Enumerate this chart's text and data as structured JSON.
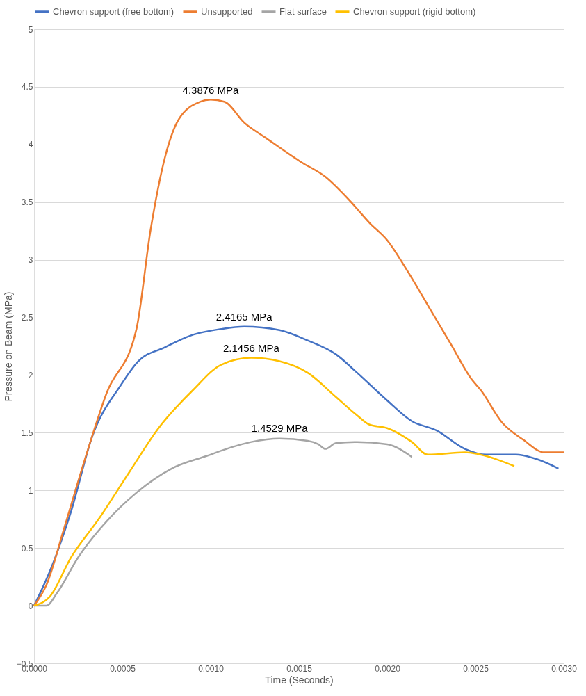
{
  "chart_data": {
    "type": "line",
    "xlabel": "Time (Seconds)",
    "ylabel": "Pressure on Beam (MPa)",
    "xlim": [
      0,
      0.003
    ],
    "ylim": [
      -0.5,
      5
    ],
    "xticks": [
      {
        "value": 0,
        "label": "0.0000"
      },
      {
        "value": 0.0005,
        "label": "0.0005"
      },
      {
        "value": 0.001,
        "label": "0.0010"
      },
      {
        "value": 0.0015,
        "label": "0.0015"
      },
      {
        "value": 0.002,
        "label": "0.0020"
      },
      {
        "value": 0.0025,
        "label": "0.0025"
      },
      {
        "value": 0.003,
        "label": "0.0030"
      }
    ],
    "yticks": [
      -0.5,
      0,
      0.5,
      1,
      1.5,
      2,
      2.5,
      3,
      3.5,
      4,
      4.5,
      5
    ],
    "grid": "y",
    "legend": "top",
    "marker": "none",
    "line_style": "solid",
    "series": [
      {
        "name": "Chevron support (free bottom)",
        "color": "#4472c4",
        "x": [
          0,
          9e-05,
          0.00021,
          0.00033,
          0.00049,
          0.00059,
          0.00074,
          0.0009,
          0.00106,
          0.00119,
          0.00139,
          0.00155,
          0.00171,
          0.00183,
          0.002,
          0.00214,
          0.00228,
          0.00244,
          0.00256,
          0.00273,
          0.00285,
          0.00297
        ],
        "values": [
          0,
          0.3,
          0.82,
          1.47,
          1.91,
          2.12,
          2.24,
          2.35,
          2.4,
          2.42,
          2.39,
          2.3,
          2.18,
          2.02,
          1.78,
          1.6,
          1.52,
          1.36,
          1.31,
          1.31,
          1.27,
          1.19
        ]
      },
      {
        "name": "Unsupported",
        "color": "#ed7d31",
        "x": [
          0,
          7e-05,
          0.00017,
          0.00029,
          0.00041,
          0.00058,
          0.00066,
          0.00074,
          0.00082,
          0.00094,
          0.001,
          0.00108,
          0.00119,
          0.00131,
          0.00151,
          0.00165,
          0.00179,
          0.0019,
          0.002,
          0.00212,
          0.00224,
          0.00236,
          0.00248,
          0.00253,
          0.00265,
          0.00277,
          0.00289,
          0.003
        ],
        "values": [
          0,
          0.18,
          0.67,
          1.28,
          1.84,
          2.4,
          3.26,
          3.88,
          4.22,
          4.37,
          4.39,
          4.37,
          4.19,
          4.06,
          3.85,
          3.72,
          3.51,
          3.32,
          3.17,
          2.89,
          2.58,
          2.27,
          1.96,
          1.87,
          1.59,
          1.44,
          1.33,
          1.33
        ]
      },
      {
        "name": "Flat surface",
        "color": "#a5a5a5",
        "x": [
          0,
          7e-05,
          0.00013,
          0.00025,
          0.00041,
          0.00058,
          0.00078,
          0.00098,
          0.00111,
          0.00123,
          0.00139,
          0.00155,
          0.00161,
          0.00165,
          0.00171,
          0.00183,
          0.002,
          0.00214
        ],
        "values": [
          0,
          0,
          0.11,
          0.42,
          0.73,
          0.98,
          1.19,
          1.3,
          1.37,
          1.42,
          1.45,
          1.43,
          1.4,
          1.36,
          1.41,
          1.42,
          1.4,
          1.29
        ]
      },
      {
        "name": "Chevron support (rigid bottom)",
        "color": "#ffc000",
        "x": [
          0,
          9e-05,
          0.00021,
          0.00037,
          0.00054,
          0.0007,
          0.0009,
          0.00106,
          0.00123,
          0.00139,
          0.00155,
          0.00171,
          0.00183,
          0.0019,
          0.002,
          0.00214,
          0.00223,
          0.00244,
          0.0026,
          0.00272
        ],
        "values": [
          0,
          0.08,
          0.42,
          0.76,
          1.16,
          1.53,
          1.87,
          2.09,
          2.15,
          2.12,
          2.02,
          1.81,
          1.65,
          1.57,
          1.54,
          1.42,
          1.31,
          1.33,
          1.28,
          1.21
        ]
      }
    ],
    "annotations": [
      {
        "text": "4.3876 MPa",
        "x": 0.001,
        "y": 4.3876
      },
      {
        "text": "2.4165 MPa",
        "x": 0.00119,
        "y": 2.4165
      },
      {
        "text": "2.1456 MPa",
        "x": 0.00123,
        "y": 2.1456
      },
      {
        "text": "1.4529 MPa",
        "x": 0.00139,
        "y": 1.4529
      }
    ]
  }
}
